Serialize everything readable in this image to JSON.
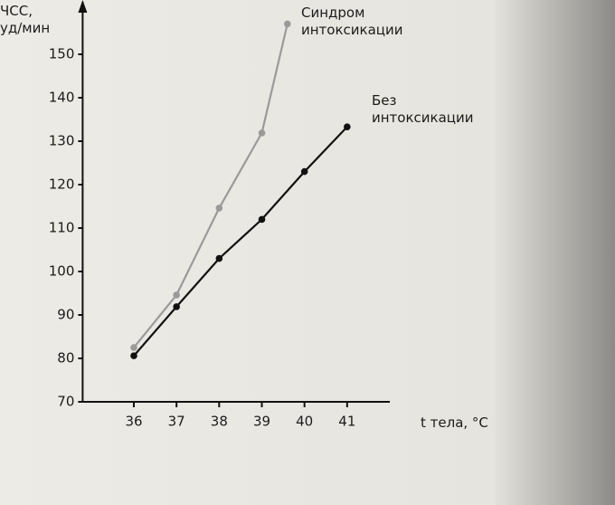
{
  "chart_data": {
    "type": "line",
    "y_label": "ЧСС, уд/мин",
    "x_label": "t тела, °C",
    "xlim": [
      34.8,
      42
    ],
    "xticks": [
      36,
      37,
      38,
      39,
      40,
      41
    ],
    "ylim": [
      70,
      160
    ],
    "yticks": [
      70,
      80,
      90,
      100,
      110,
      120,
      130,
      140,
      150
    ],
    "grid": false,
    "series": [
      {
        "name": "Синдром интоксикации",
        "color": "#9a9a9a",
        "x": [
          36,
          37,
          38,
          39,
          39.6
        ],
        "values": [
          82.5,
          94.6,
          114.6,
          131.9,
          157
        ]
      },
      {
        "name": "Без интоксикации",
        "color": "#111111",
        "x": [
          36,
          37,
          38,
          39,
          40,
          41
        ],
        "values": [
          80.6,
          91.9,
          103,
          112,
          123,
          133.3
        ]
      }
    ]
  }
}
